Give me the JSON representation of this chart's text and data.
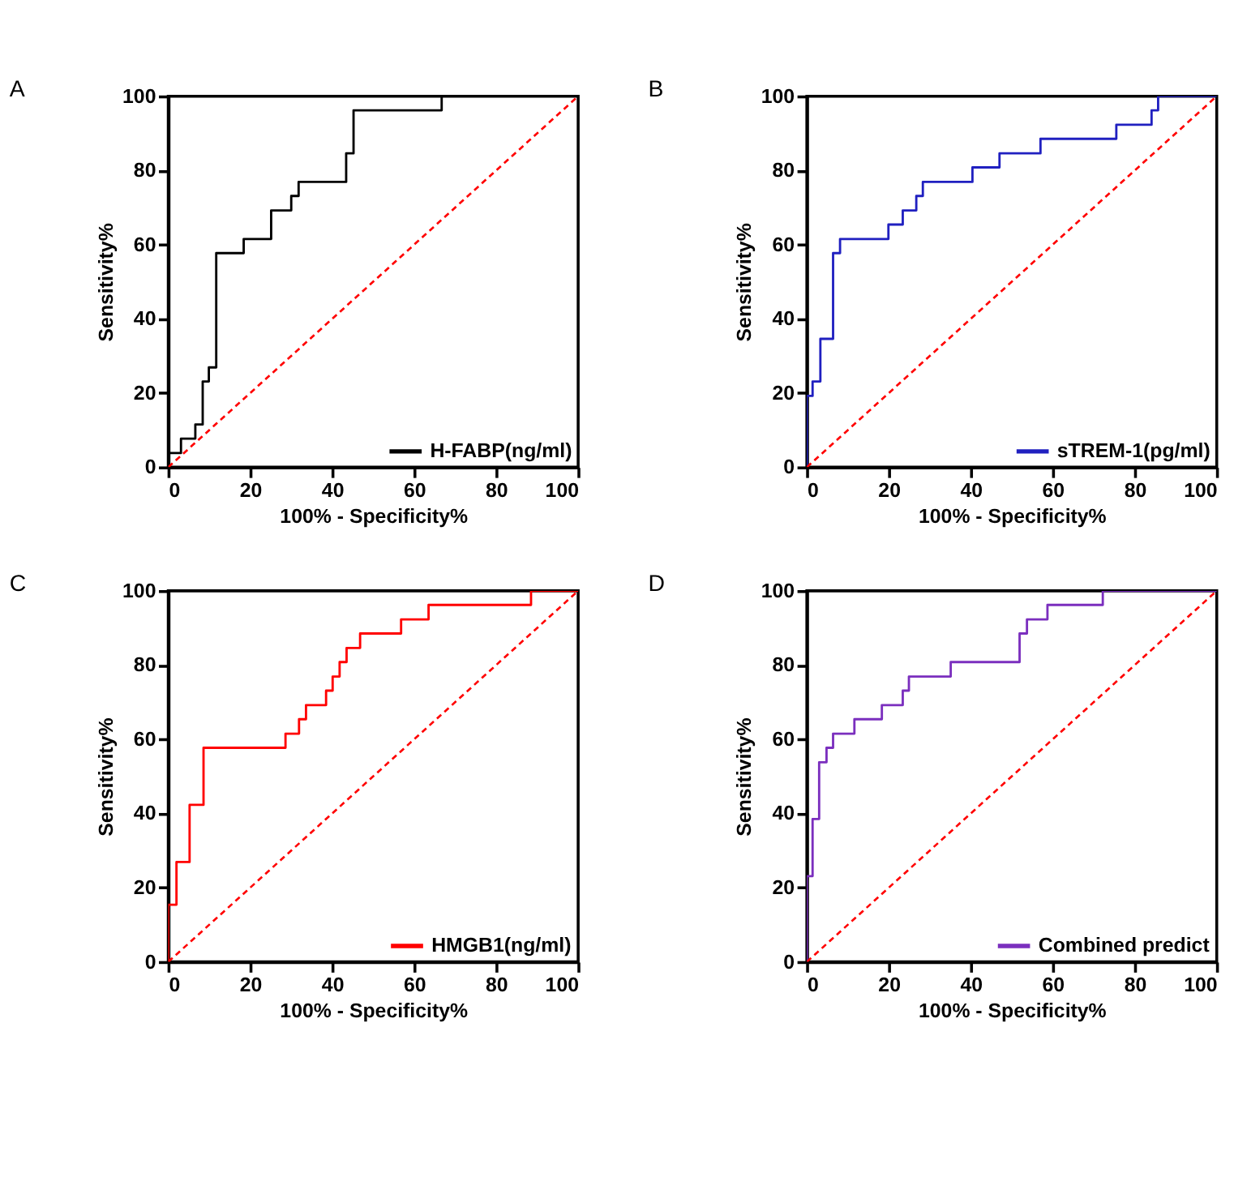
{
  "chart_data": [
    {
      "type": "step",
      "title": "A",
      "xlabel": "100% - Specificity%",
      "ylabel": "Sensitivity%",
      "xlim": [
        0,
        100
      ],
      "ylim": [
        0,
        100
      ],
      "xticks": [
        0,
        20,
        40,
        60,
        80,
        100
      ],
      "yticks": [
        0,
        20,
        40,
        60,
        80,
        100
      ],
      "grid": false,
      "legend": "bottom right",
      "marker": "none",
      "series": [
        {
          "name": "H-FABP(ng/ml)",
          "color": "#000000",
          "line_style": "solid",
          "x": [
            0,
            0,
            3.1,
            6.6,
            8.4,
            9.9,
            11.7,
            18.4,
            25.1,
            30.0,
            31.8,
            43.4,
            45.2,
            66.7,
            100
          ],
          "values": [
            0,
            3.8,
            7.7,
            11.5,
            23.1,
            26.9,
            57.7,
            61.5,
            69.2,
            73.1,
            76.9,
            84.6,
            96.2,
            100,
            100
          ]
        },
        {
          "type": "line",
          "color": "#ff0000",
          "line_style": "dashed",
          "x": [
            0,
            100
          ],
          "values": [
            0,
            100
          ]
        }
      ]
    },
    {
      "type": "step",
      "title": "B",
      "xlabel": "100% - Specificity%",
      "ylabel": "Sensitivity%",
      "xlim": [
        0,
        100
      ],
      "ylim": [
        0,
        100
      ],
      "xticks": [
        0,
        20,
        40,
        60,
        80,
        100
      ],
      "yticks": [
        0,
        20,
        40,
        60,
        80,
        100
      ],
      "grid": false,
      "legend": "bottom right",
      "marker": "none",
      "series": [
        {
          "name": "sTREM-1(pg/ml)",
          "color": "#2020c0",
          "line_style": "solid",
          "x": [
            0,
            0,
            1.4,
            3.3,
            6.4,
            8.1,
            19.9,
            23.4,
            26.7,
            28.3,
            40.4,
            47.0,
            57.0,
            75.5,
            84.1,
            85.7,
            100
          ],
          "values": [
            0,
            19.2,
            23.1,
            34.6,
            57.7,
            61.5,
            65.4,
            69.2,
            73.1,
            76.9,
            80.8,
            84.6,
            88.5,
            92.3,
            96.2,
            100,
            100
          ]
        },
        {
          "type": "line",
          "color": "#ff0000",
          "line_style": "dashed",
          "x": [
            0,
            100
          ],
          "values": [
            0,
            100
          ]
        }
      ]
    },
    {
      "type": "step",
      "title": "C",
      "xlabel": "100% - Specificity%",
      "ylabel": "Sensitivity%",
      "xlim": [
        0,
        100
      ],
      "ylim": [
        0,
        100
      ],
      "xticks": [
        0,
        20,
        40,
        60,
        80,
        100
      ],
      "yticks": [
        0,
        20,
        40,
        60,
        80,
        100
      ],
      "grid": false,
      "legend": "bottom right",
      "marker": "none",
      "series": [
        {
          "name": "HMGB1(ng/ml)",
          "color": "#ff0000",
          "line_style": "solid",
          "x": [
            0,
            0,
            2.0,
            5.2,
            8.6,
            28.6,
            31.9,
            33.6,
            38.5,
            40.1,
            41.8,
            43.5,
            46.8,
            56.8,
            63.5,
            88.5,
            100
          ],
          "values": [
            0,
            15.4,
            26.9,
            42.3,
            57.7,
            61.5,
            65.4,
            69.2,
            73.1,
            76.9,
            80.8,
            84.6,
            88.5,
            92.3,
            96.2,
            100,
            100
          ]
        },
        {
          "type": "line",
          "color": "#ff0000",
          "line_style": "dashed",
          "x": [
            0,
            100
          ],
          "values": [
            0,
            100
          ]
        }
      ]
    },
    {
      "type": "step",
      "title": "D",
      "xlabel": "100% - Specificity%",
      "ylabel": "Sensitivity%",
      "xlim": [
        0,
        100
      ],
      "ylim": [
        0,
        100
      ],
      "xticks": [
        0,
        20,
        40,
        60,
        80,
        100
      ],
      "yticks": [
        0,
        20,
        40,
        60,
        80,
        100
      ],
      "grid": false,
      "legend": "bottom right",
      "marker": "none",
      "series": [
        {
          "name": "Combined predict",
          "color": "#7b2fbe",
          "line_style": "solid",
          "x": [
            0,
            0,
            1.4,
            3.0,
            4.8,
            6.4,
            11.6,
            18.3,
            23.4,
            24.9,
            35.1,
            51.9,
            53.7,
            58.7,
            72.2,
            100
          ],
          "values": [
            0,
            23.1,
            38.5,
            53.8,
            57.7,
            61.5,
            65.4,
            69.2,
            73.1,
            76.9,
            80.8,
            88.5,
            92.3,
            96.2,
            100,
            100
          ]
        },
        {
          "type": "line",
          "color": "#ff0000",
          "line_style": "dashed",
          "x": [
            0,
            100
          ],
          "values": [
            0,
            100
          ]
        }
      ]
    }
  ]
}
